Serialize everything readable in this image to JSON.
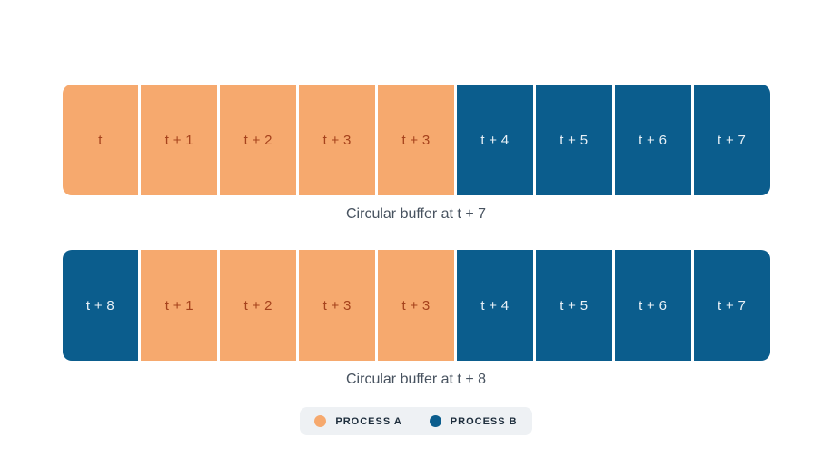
{
  "colors": {
    "process_a": "#F6A96E",
    "process_b": "#0B5D8D",
    "label_on_a": "#A6421C",
    "label_on_b": "#E9F1F7",
    "caption": "#47525F",
    "legend_bg": "#EEF1F4",
    "legend_text": "#1D2D3C",
    "background": "#FFFFFF"
  },
  "buffers": [
    {
      "caption": "Circular buffer at t + 7",
      "cells": [
        {
          "label": "t",
          "process": "A"
        },
        {
          "label": "t + 1",
          "process": "A"
        },
        {
          "label": "t + 2",
          "process": "A"
        },
        {
          "label": "t + 3",
          "process": "A"
        },
        {
          "label": "t + 3",
          "process": "A"
        },
        {
          "label": "t + 4",
          "process": "B"
        },
        {
          "label": "t + 5",
          "process": "B"
        },
        {
          "label": "t + 6",
          "process": "B"
        },
        {
          "label": "t + 7",
          "process": "B"
        }
      ]
    },
    {
      "caption": "Circular buffer at t + 8",
      "cells": [
        {
          "label": "t + 8",
          "process": "B"
        },
        {
          "label": "t + 1",
          "process": "A"
        },
        {
          "label": "t + 2",
          "process": "A"
        },
        {
          "label": "t + 3",
          "process": "A"
        },
        {
          "label": "t + 3",
          "process": "A"
        },
        {
          "label": "t + 4",
          "process": "B"
        },
        {
          "label": "t + 5",
          "process": "B"
        },
        {
          "label": "t + 6",
          "process": "B"
        },
        {
          "label": "t + 7",
          "process": "B"
        }
      ]
    }
  ],
  "legend": {
    "items": [
      {
        "label": "PROCESS A",
        "process": "A",
        "swatch_icon": "circle-swatch-icon",
        "color": "#F6A96E"
      },
      {
        "label": "PROCESS B",
        "process": "B",
        "swatch_icon": "circle-swatch-icon",
        "color": "#0B5D8D"
      }
    ]
  }
}
